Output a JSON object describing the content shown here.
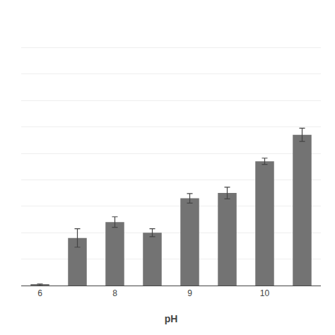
{
  "chart_data": {
    "type": "bar",
    "x_label": "pH",
    "categories": [
      "6",
      null,
      "8",
      null,
      "9",
      null,
      "10",
      null
    ],
    "values": [
      0.3,
      18,
      24,
      20,
      33,
      35,
      47,
      57
    ],
    "errors": [
      0.3,
      3.5,
      2.0,
      1.5,
      1.8,
      2.2,
      1.2,
      2.5
    ],
    "color": "#737373",
    "ylim": [
      0,
      100
    ],
    "yticks": [
      0,
      10,
      20,
      30,
      40,
      50,
      60,
      70,
      80,
      90,
      100
    ],
    "grid": true,
    "tick_labels": "x"
  }
}
